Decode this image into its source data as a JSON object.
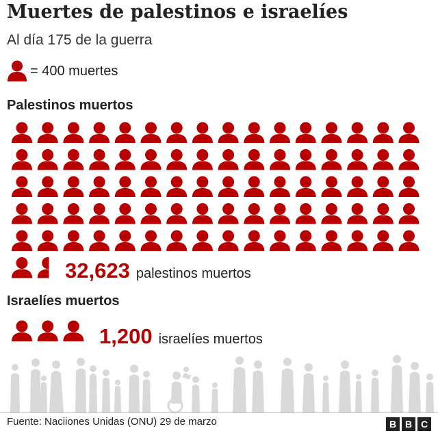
{
  "title": "Muertes de palestinos e israelíes",
  "subtitle": "Al día 175 de la guerra",
  "legend": {
    "text": "= 400 muertes"
  },
  "palestinian": {
    "label": "Palestinos muertos",
    "number": "32,623",
    "desc": "palestinos muertos"
  },
  "israeli": {
    "label": "Israelíes muertos",
    "number": "1,200",
    "desc": "israelíes muertos"
  },
  "source": "Fuente: Naciiones Unidas (ONU) 29 de marzo",
  "logo": [
    "B",
    "B",
    "C"
  ],
  "colors": {
    "icon": "#b80000",
    "silhouette": "#d9d9d9"
  },
  "chart_data": {
    "type": "pictogram",
    "unit_value": 400,
    "unit_label": "= 400 muertes",
    "series": [
      {
        "name": "Palestinos muertos",
        "value": 32623,
        "icons": 81.56
      },
      {
        "name": "Israelíes muertos",
        "value": 1200,
        "icons": 3
      }
    ]
  }
}
